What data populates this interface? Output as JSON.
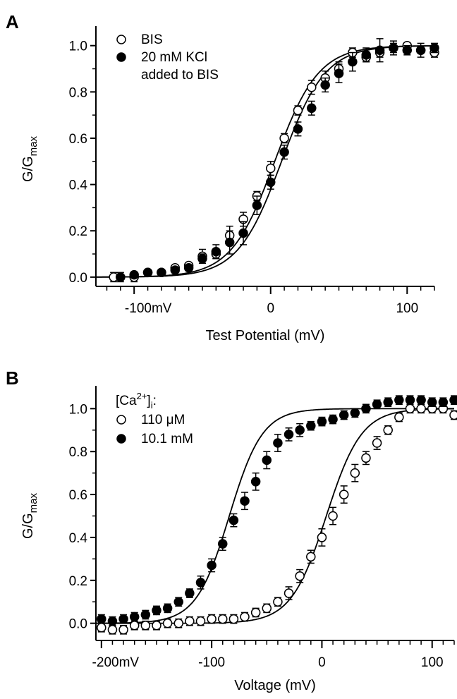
{
  "chart_data": [
    {
      "type": "scatter",
      "panel_label": "A",
      "xlabel": "Test Potential (mV)",
      "ylabel": "G/G",
      "ylabel_sub": "max",
      "xlim": [
        -128,
        120
      ],
      "ylim": [
        -0.04,
        1.06
      ],
      "x_ticks": [
        {
          "v": -100,
          "label": "-100mV"
        },
        {
          "v": 0,
          "label": "0"
        },
        {
          "v": 100,
          "label": "100"
        }
      ],
      "x_minor_step": 10,
      "y_ticks": [
        0.0,
        0.2,
        0.4,
        0.6,
        0.8,
        1.0
      ],
      "y_tick_labels": [
        "0.0",
        "0.2",
        "0.4",
        "0.6",
        "0.8",
        "1.0"
      ],
      "legend": {
        "placement": "top-left",
        "lines": [
          [
            "BIS"
          ],
          [
            "20 mM KCl",
            "added to BIS"
          ]
        ]
      },
      "series": [
        {
          "name": "BIS",
          "marker": "open-circle",
          "fit": {
            "v_half": 3,
            "k": 16
          },
          "x": [
            -115,
            -110,
            -100,
            -90,
            -80,
            -70,
            -60,
            -50,
            -40,
            -30,
            -20,
            -10,
            0,
            10,
            20,
            30,
            40,
            50,
            60,
            70,
            80,
            90,
            100,
            110,
            120
          ],
          "y": [
            0.0,
            0.0,
            0.0,
            0.02,
            0.02,
            0.04,
            0.05,
            0.09,
            0.1,
            0.18,
            0.25,
            0.35,
            0.47,
            0.6,
            0.72,
            0.82,
            0.86,
            0.9,
            0.97,
            0.95,
            0.97,
            0.99,
            1.0,
            0.98,
            0.97
          ],
          "err": [
            0.02,
            0.02,
            0.02,
            0.01,
            0.01,
            0.01,
            0.01,
            0.03,
            0.02,
            0.04,
            0.03,
            0.02,
            0.03,
            0.02,
            0.02,
            0.03,
            0.03,
            0.03,
            0.02,
            0.02,
            0.02,
            0.02,
            0.01,
            0.01,
            0.02
          ]
        },
        {
          "name": "20 mM KCl added to BIS",
          "marker": "filled-circle",
          "fit": {
            "v_half": 8,
            "k": 16
          },
          "x": [
            -110,
            -100,
            -90,
            -80,
            -70,
            -60,
            -50,
            -40,
            -30,
            -20,
            -10,
            0,
            10,
            20,
            30,
            40,
            50,
            60,
            70,
            80,
            90,
            100,
            110,
            120
          ],
          "y": [
            0.0,
            0.01,
            0.02,
            0.02,
            0.03,
            0.04,
            0.08,
            0.11,
            0.15,
            0.19,
            0.31,
            0.41,
            0.54,
            0.64,
            0.73,
            0.83,
            0.88,
            0.93,
            0.96,
            0.98,
            0.99,
            0.98,
            0.98,
            0.99
          ],
          "err": [
            0.01,
            0.01,
            0.01,
            0.01,
            0.01,
            0.01,
            0.02,
            0.03,
            0.05,
            0.05,
            0.04,
            0.03,
            0.03,
            0.03,
            0.03,
            0.03,
            0.04,
            0.04,
            0.03,
            0.05,
            0.03,
            0.02,
            0.03,
            0.02
          ]
        }
      ]
    },
    {
      "type": "scatter",
      "panel_label": "B",
      "xlabel": "Voltage (mV)",
      "ylabel": "G/G",
      "ylabel_sub": "max",
      "xlim": [
        -205,
        120
      ],
      "ylim": [
        -0.08,
        1.08
      ],
      "x_ticks": [
        {
          "v": -200,
          "label": "-200mV"
        },
        {
          "v": -100,
          "label": "-100"
        },
        {
          "v": 0,
          "label": "0"
        },
        {
          "v": 100,
          "label": "100"
        }
      ],
      "x_minor_step": 10,
      "y_ticks": [
        0.0,
        0.2,
        0.4,
        0.6,
        0.8,
        1.0
      ],
      "y_tick_labels": [
        "0.0",
        "0.2",
        "0.4",
        "0.6",
        "0.8",
        "1.0"
      ],
      "legend": {
        "placement": "top-left",
        "title": "[Ca",
        "title_sup": "2+",
        "title_close": "]",
        "title_sub": "i",
        "title_end": ":",
        "lines": [
          [
            "110 μM"
          ],
          [
            "10.1 mM"
          ]
        ]
      },
      "series": [
        {
          "name": "110 μM",
          "marker": "open-circle",
          "fit": {
            "v_half": 4,
            "k": 16
          },
          "x": [
            -200,
            -190,
            -180,
            -170,
            -160,
            -150,
            -140,
            -130,
            -120,
            -110,
            -100,
            -90,
            -80,
            -70,
            -60,
            -50,
            -40,
            -30,
            -20,
            -10,
            0,
            10,
            20,
            30,
            40,
            50,
            60,
            70,
            80,
            90,
            100,
            110,
            120
          ],
          "y": [
            -0.02,
            -0.03,
            -0.03,
            -0.01,
            -0.01,
            -0.01,
            0.0,
            0.0,
            0.01,
            0.01,
            0.02,
            0.02,
            0.02,
            0.03,
            0.05,
            0.07,
            0.1,
            0.14,
            0.22,
            0.31,
            0.4,
            0.5,
            0.6,
            0.7,
            0.77,
            0.84,
            0.9,
            0.96,
            1.0,
            1.0,
            1.0,
            1.0,
            0.97
          ],
          "err": [
            0.02,
            0.02,
            0.02,
            0.02,
            0.02,
            0.02,
            0.02,
            0.02,
            0.02,
            0.02,
            0.02,
            0.02,
            0.02,
            0.02,
            0.02,
            0.02,
            0.02,
            0.03,
            0.03,
            0.03,
            0.04,
            0.04,
            0.04,
            0.04,
            0.03,
            0.03,
            0.02,
            0.02,
            0.02,
            0.02,
            0.02,
            0.02,
            0.02
          ]
        },
        {
          "name": "10.1 mM",
          "marker": "filled-circle",
          "fit": {
            "v_half": -84,
            "k": 15
          },
          "x": [
            -200,
            -190,
            -180,
            -170,
            -160,
            -150,
            -140,
            -130,
            -120,
            -110,
            -100,
            -90,
            -80,
            -70,
            -60,
            -50,
            -40,
            -30,
            -20,
            -10,
            0,
            10,
            20,
            30,
            40,
            50,
            60,
            70,
            80,
            90,
            100,
            110,
            120
          ],
          "y": [
            0.02,
            0.01,
            0.02,
            0.03,
            0.04,
            0.06,
            0.07,
            0.1,
            0.14,
            0.19,
            0.27,
            0.37,
            0.48,
            0.57,
            0.66,
            0.76,
            0.84,
            0.88,
            0.9,
            0.92,
            0.94,
            0.95,
            0.97,
            0.98,
            1.0,
            1.02,
            1.03,
            1.04,
            1.04,
            1.04,
            1.03,
            1.03,
            1.04
          ],
          "err": [
            0.02,
            0.02,
            0.02,
            0.02,
            0.02,
            0.02,
            0.02,
            0.02,
            0.02,
            0.03,
            0.03,
            0.03,
            0.03,
            0.04,
            0.04,
            0.04,
            0.04,
            0.03,
            0.03,
            0.02,
            0.02,
            0.02,
            0.02,
            0.02,
            0.02,
            0.02,
            0.02,
            0.02,
            0.02,
            0.02,
            0.02,
            0.02,
            0.02
          ]
        }
      ]
    }
  ]
}
